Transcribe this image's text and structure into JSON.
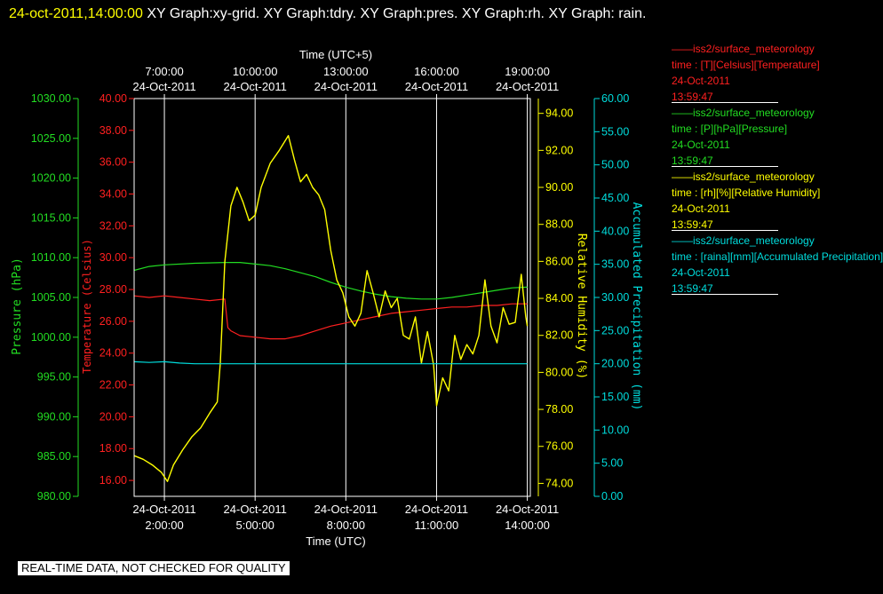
{
  "header": {
    "timestamp": "24-oct-2011,14:00:00",
    "rest": "  XY Graph:xy-grid.  XY Graph:tdry.  XY Graph:pres.  XY Graph:rh.  XY Graph: rain."
  },
  "disclaimer": "REAL-TIME DATA, NOT CHECKED FOR QUALITY",
  "legend": [
    {
      "source": "——iss2/surface_meteorology",
      "units": "time : [T][Celsius][Temperature]",
      "date": "24-Oct-2011",
      "time": "13:59:47",
      "color": "#ff2020"
    },
    {
      "source": "——iss2/surface_meteorology",
      "units": "time : [P][hPa][Pressure]",
      "date": "24-Oct-2011",
      "time": "13:59:47",
      "color": "#22dd22"
    },
    {
      "source": "——iss2/surface_meteorology",
      "units": "time : [rh][%][Relative Humidity]",
      "date": "24-Oct-2011",
      "time": "13:59:47",
      "color": "#ffff00"
    },
    {
      "source": "——iss2/surface_meteorology",
      "units": "time : [raina][mm][Accumulated Precipitation]",
      "date": "24-Oct-2011",
      "time": "13:59:47",
      "color": "#00dddd"
    }
  ],
  "chart_data": {
    "type": "line",
    "x_bottom": {
      "label": "Time (UTC)",
      "ticks": [
        {
          "date": "24-Oct-2011",
          "time": "2:00:00",
          "hour": 2
        },
        {
          "date": "24-Oct-2011",
          "time": "5:00:00",
          "hour": 5
        },
        {
          "date": "24-Oct-2011",
          "time": "8:00:00",
          "hour": 8
        },
        {
          "date": "24-Oct-2011",
          "time": "11:00:00",
          "hour": 11
        },
        {
          "date": "24-Oct-2011",
          "time": "14:00:00",
          "hour": 14
        }
      ],
      "range": [
        1.0,
        14.1
      ]
    },
    "x_top": {
      "label": "Time (UTC+5)",
      "ticks": [
        {
          "time": "7:00:00",
          "date": "24-Oct-2011",
          "hour": 2
        },
        {
          "time": "10:00:00",
          "date": "24-Oct-2011",
          "hour": 5
        },
        {
          "time": "13:00:00",
          "date": "24-Oct-2011",
          "hour": 8
        },
        {
          "time": "16:00:00",
          "date": "24-Oct-2011",
          "hour": 11
        },
        {
          "time": "19:00:00",
          "date": "24-Oct-2011",
          "hour": 14
        }
      ]
    },
    "grid": "vertical",
    "axes": {
      "pressure": {
        "label": "Pressure (hPa)",
        "color": "#22dd22",
        "range": [
          980,
          1030
        ],
        "ticks": [
          "980.00",
          "985.00",
          "990.00",
          "995.00",
          "1000.00",
          "1005.00",
          "1010.00",
          "1015.00",
          "1020.00",
          "1025.00",
          "1030.00"
        ]
      },
      "temperature": {
        "label": "Temperature (Celsius)",
        "color": "#ff2020",
        "range": [
          15,
          40
        ],
        "ticks": [
          "16.00",
          "18.00",
          "20.00",
          "22.00",
          "24.00",
          "26.00",
          "28.00",
          "30.00",
          "32.00",
          "34.00",
          "36.00",
          "38.00",
          "40.00"
        ]
      },
      "humidity": {
        "label": "Relative Humidity (%)",
        "color": "#ffff00",
        "range": [
          73.3,
          94.8
        ],
        "ticks": [
          "74.00",
          "76.00",
          "78.00",
          "80.00",
          "82.00",
          "84.00",
          "86.00",
          "88.00",
          "90.00",
          "92.00",
          "94.00"
        ]
      },
      "precip": {
        "label": "Accumulated Precipitation (mm)",
        "color": "#00dddd",
        "range": [
          0,
          60
        ],
        "ticks": [
          "0.00",
          "5.00",
          "10.00",
          "15.00",
          "20.00",
          "25.00",
          "30.00",
          "35.00",
          "40.00",
          "45.00",
          "50.00",
          "55.00",
          "60.00"
        ]
      }
    },
    "series": [
      {
        "name": "Temperature",
        "axis": "temperature",
        "color": "#ff2020",
        "x": [
          1.0,
          1.5,
          2.0,
          2.5,
          3.0,
          3.5,
          4.0,
          4.1,
          4.2,
          4.5,
          5.0,
          5.5,
          6.0,
          6.5,
          7.0,
          7.5,
          8.0,
          8.5,
          9.0,
          9.5,
          10.0,
          10.5,
          11.0,
          11.5,
          12.0,
          12.5,
          13.0,
          13.5,
          14.0
        ],
        "values": [
          27.6,
          27.5,
          27.6,
          27.5,
          27.4,
          27.3,
          27.4,
          25.6,
          25.4,
          25.1,
          25.0,
          24.9,
          24.9,
          25.1,
          25.4,
          25.7,
          25.9,
          26.1,
          26.3,
          26.5,
          26.6,
          26.7,
          26.8,
          26.9,
          26.9,
          27.0,
          27.0,
          27.1,
          27.1
        ]
      },
      {
        "name": "Pressure",
        "axis": "pressure",
        "color": "#22dd22",
        "x": [
          1.0,
          1.5,
          2.0,
          3.0,
          4.0,
          4.5,
          5.0,
          5.5,
          6.0,
          6.5,
          7.0,
          7.5,
          8.0,
          8.5,
          9.0,
          9.5,
          10.0,
          10.5,
          11.0,
          11.5,
          12.0,
          12.5,
          13.0,
          13.5,
          14.0
        ],
        "values": [
          1008.4,
          1008.9,
          1009.1,
          1009.3,
          1009.4,
          1009.4,
          1009.2,
          1009.0,
          1008.6,
          1008.1,
          1007.6,
          1006.9,
          1006.3,
          1005.8,
          1005.4,
          1005.1,
          1004.9,
          1004.8,
          1004.8,
          1005.0,
          1005.3,
          1005.6,
          1005.9,
          1006.2,
          1006.3
        ]
      },
      {
        "name": "Relative Humidity",
        "axis": "humidity",
        "color": "#ffff00",
        "x": [
          1.0,
          1.3,
          1.6,
          1.9,
          2.1,
          2.3,
          2.6,
          2.9,
          3.2,
          3.5,
          3.75,
          3.85,
          4.0,
          4.2,
          4.4,
          4.6,
          4.8,
          5.0,
          5.2,
          5.5,
          5.8,
          6.1,
          6.3,
          6.5,
          6.7,
          6.9,
          7.1,
          7.3,
          7.5,
          7.7,
          7.9,
          8.1,
          8.3,
          8.5,
          8.7,
          8.9,
          9.1,
          9.3,
          9.5,
          9.7,
          9.9,
          10.1,
          10.3,
          10.5,
          10.7,
          10.9,
          11.0,
          11.2,
          11.4,
          11.6,
          11.8,
          12.0,
          12.2,
          12.4,
          12.6,
          12.8,
          13.0,
          13.2,
          13.4,
          13.6,
          13.8,
          13.95,
          14.0
        ],
        "values": [
          75.5,
          75.3,
          75.0,
          74.6,
          74.1,
          75.0,
          75.8,
          76.5,
          77.0,
          77.8,
          78.4,
          80.5,
          86.0,
          89.0,
          90.0,
          89.2,
          88.2,
          88.5,
          90.0,
          91.3,
          92.0,
          92.8,
          91.5,
          90.3,
          90.7,
          90.0,
          89.6,
          88.8,
          86.6,
          85.0,
          84.3,
          83.0,
          82.5,
          83.2,
          85.5,
          84.3,
          83.0,
          84.4,
          83.5,
          84.0,
          82.0,
          81.8,
          83.0,
          80.5,
          82.2,
          80.4,
          78.2,
          79.7,
          79.0,
          82.0,
          80.7,
          81.5,
          81.0,
          82.0,
          85.0,
          82.5,
          81.6,
          83.5,
          82.6,
          82.7,
          85.3,
          83.0,
          82.5
        ]
      },
      {
        "name": "Accumulated Precipitation",
        "axis": "precip",
        "color": "#00dddd",
        "x": [
          1.0,
          1.5,
          2.0,
          2.5,
          3.0,
          3.5,
          4.0,
          5.0,
          6.0,
          7.0,
          8.0,
          9.0,
          10.0,
          11.0,
          12.0,
          13.0,
          14.0
        ],
        "values": [
          20.3,
          20.2,
          20.3,
          20.1,
          20.0,
          20.0,
          20.0,
          20.0,
          20.0,
          20.0,
          20.0,
          20.0,
          20.0,
          20.0,
          20.0,
          20.0,
          20.0
        ]
      }
    ]
  }
}
